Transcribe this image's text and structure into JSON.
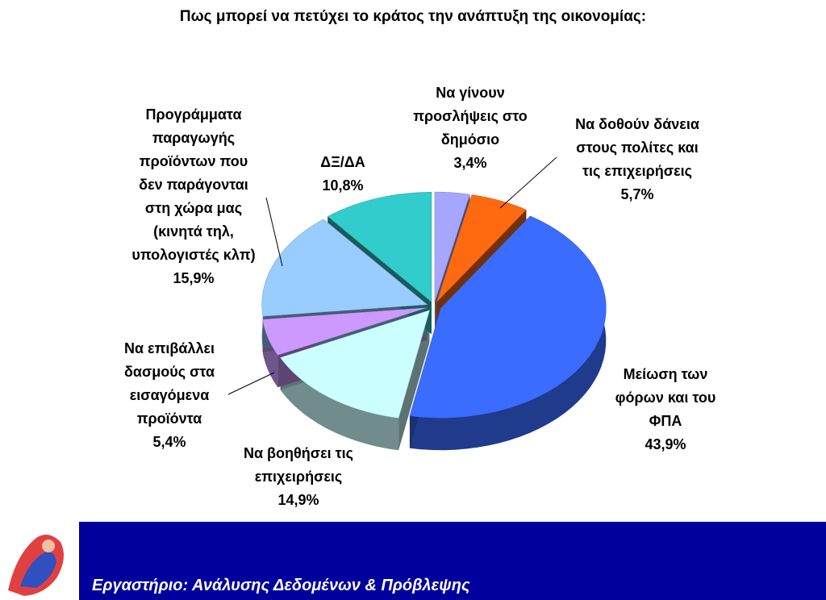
{
  "chart_data": {
    "type": "pie",
    "title": "Πως μπορεί να πετύχει το κράτος την ανάπτυξη της οικονομίας:",
    "categories": [
      "Να γίνουν\nπροσλήψεις στο\nδημόσιο",
      "Να δοθούν δάνεια\nστους πολίτες και\nτις επιχειρήσεις",
      "Μείωση των\nφόρων και του\nΦΠΑ",
      "Να βοηθήσει τις\nεπιχειρήσεις",
      "Να επιβάλλει\nδασμούς στα\nεισαγόμενα\nπροϊόντα",
      "Προγράμματα\nπαραγωγής\nπροϊόντων που\nδεν παράγονται\nστη χώρα μας\n(κινητά τηλ,\nυπολογιστές κλπ)",
      "ΔΞ/ΔΑ"
    ],
    "values": [
      3.4,
      5.7,
      43.9,
      14.9,
      5.4,
      15.9,
      10.8
    ],
    "value_labels": [
      "3,4%",
      "5,7%",
      "43,9%",
      "14,9%",
      "5,4%",
      "15,9%",
      "10,8%"
    ],
    "colors": [
      "#a6a6ff",
      "#ff6a10",
      "#3a6cff",
      "#ccffff",
      "#cc99ff",
      "#99ccff",
      "#33cccc"
    ]
  },
  "footer": {
    "text": "Εργαστήριο: Ανάλυσης Δεδομένων & Πρόβλεψης"
  }
}
